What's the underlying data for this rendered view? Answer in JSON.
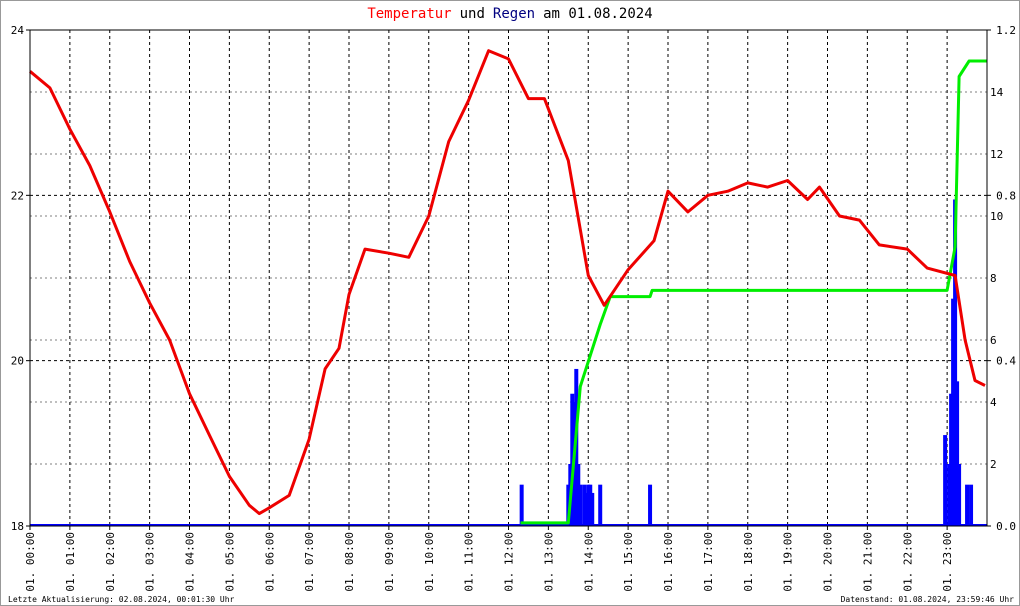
{
  "chart_data": {
    "type": "line",
    "title_parts": [
      {
        "text": "Temperatur",
        "color": "#ff0000"
      },
      {
        "text": "und",
        "color": "#000000"
      },
      {
        "text": "Regen",
        "color": "#000080"
      },
      {
        "text": "am 01.08.2024",
        "color": "#000000"
      }
    ],
    "footer_left": "Letzte Aktualisierung: 02.08.2024, 00:01:30 Uhr",
    "footer_right": "Datenstand: 01.08.2024, 23:59:46 Uhr",
    "xlim": [
      0,
      24
    ],
    "xticks": [
      {
        "value": 0,
        "label": "01. 00:00"
      },
      {
        "value": 1,
        "label": "01. 01:00"
      },
      {
        "value": 2,
        "label": "01. 02:00"
      },
      {
        "value": 3,
        "label": "01. 03:00"
      },
      {
        "value": 4,
        "label": "01. 04:00"
      },
      {
        "value": 5,
        "label": "01. 05:00"
      },
      {
        "value": 6,
        "label": "01. 06:00"
      },
      {
        "value": 7,
        "label": "01. 07:00"
      },
      {
        "value": 8,
        "label": "01. 08:00"
      },
      {
        "value": 9,
        "label": "01. 09:00"
      },
      {
        "value": 10,
        "label": "01. 10:00"
      },
      {
        "value": 11,
        "label": "01. 11:00"
      },
      {
        "value": 12,
        "label": "01. 12:00"
      },
      {
        "value": 13,
        "label": "01. 13:00"
      },
      {
        "value": 14,
        "label": "01. 14:00"
      },
      {
        "value": 15,
        "label": "01. 15:00"
      },
      {
        "value": 16,
        "label": "01. 16:00"
      },
      {
        "value": 17,
        "label": "01. 17:00"
      },
      {
        "value": 18,
        "label": "01. 18:00"
      },
      {
        "value": 19,
        "label": "01. 19:00"
      },
      {
        "value": 20,
        "label": "01. 20:00"
      },
      {
        "value": 21,
        "label": "01. 21:00"
      },
      {
        "value": 22,
        "label": "01. 22:00"
      },
      {
        "value": 23,
        "label": "01. 23:00"
      }
    ],
    "ylim": [
      18,
      24
    ],
    "yticks": [
      18,
      20,
      22,
      24
    ],
    "y2lim": [
      0,
      1.2
    ],
    "y2ticks": [
      {
        "value": 0,
        "label": "0.0"
      },
      0.4,
      0.8,
      1.2
    ],
    "y3lim": [
      0,
      16
    ],
    "y3ticks": [
      2,
      4,
      6,
      8,
      10,
      12,
      14
    ],
    "grid": true,
    "series": [
      {
        "kind": "bar",
        "axis": "y2",
        "color": "#0000ff",
        "x": [
          12.33,
          13.5,
          13.55,
          13.6,
          13.65,
          13.7,
          13.75,
          13.8,
          13.9,
          13.95,
          14.0,
          14.05,
          14.1,
          14.3,
          15.55,
          22.95,
          23.05,
          23.1,
          23.15,
          23.2,
          23.25,
          23.3,
          23.5,
          23.6
        ],
        "values": [
          0.1,
          0.1,
          0.15,
          0.32,
          0.3,
          0.38,
          0.15,
          0.1,
          0.1,
          0.08,
          0.1,
          0.1,
          0.08,
          0.1,
          0.1,
          0.22,
          0.15,
          0.32,
          0.55,
          0.79,
          0.35,
          0.15,
          0.1,
          0.1
        ]
      },
      {
        "kind": "line",
        "axis": "y3",
        "color": "#00ee00",
        "x": [
          12.3,
          13.5,
          13.8,
          14.3,
          14.55,
          15.55,
          15.6,
          23.0,
          23.2,
          23.3,
          23.55,
          24
        ],
        "values": [
          0.1,
          0.1,
          4.5,
          6.5,
          7.4,
          7.4,
          7.6,
          7.6,
          9,
          14.5,
          15,
          15
        ]
      },
      {
        "kind": "line",
        "axis": "y",
        "color": "#ee0000",
        "x": [
          0,
          0.5,
          1,
          1.5,
          2,
          2.5,
          3,
          3.5,
          4,
          4.5,
          5,
          5.5,
          5.75,
          6,
          6.5,
          7,
          7.4,
          7.75,
          8,
          8.4,
          9,
          9.5,
          10,
          10.5,
          11,
          11.5,
          12,
          12.5,
          12.9,
          13.5,
          14,
          14.4,
          15,
          15.65,
          16,
          16.5,
          17,
          17.5,
          18,
          18.5,
          19,
          19.5,
          19.8,
          20.3,
          20.8,
          21.3,
          22,
          22.5,
          23.2,
          23.45,
          23.7,
          23.95
        ],
        "values": [
          23.5,
          23.3,
          22.8,
          22.36,
          21.8,
          21.2,
          20.7,
          20.25,
          19.6,
          19.1,
          18.6,
          18.25,
          18.15,
          18.22,
          18.37,
          19.05,
          19.9,
          20.15,
          20.8,
          21.35,
          21.3,
          21.25,
          21.75,
          22.65,
          23.15,
          23.75,
          23.65,
          23.17,
          23.17,
          22.42,
          21.03,
          20.67,
          21.1,
          21.45,
          22.05,
          21.8,
          22.0,
          22.05,
          22.15,
          22.1,
          22.18,
          21.95,
          22.1,
          21.75,
          21.7,
          21.4,
          21.35,
          21.12,
          21.03,
          20.25,
          19.76,
          19.7
        ]
      }
    ]
  }
}
